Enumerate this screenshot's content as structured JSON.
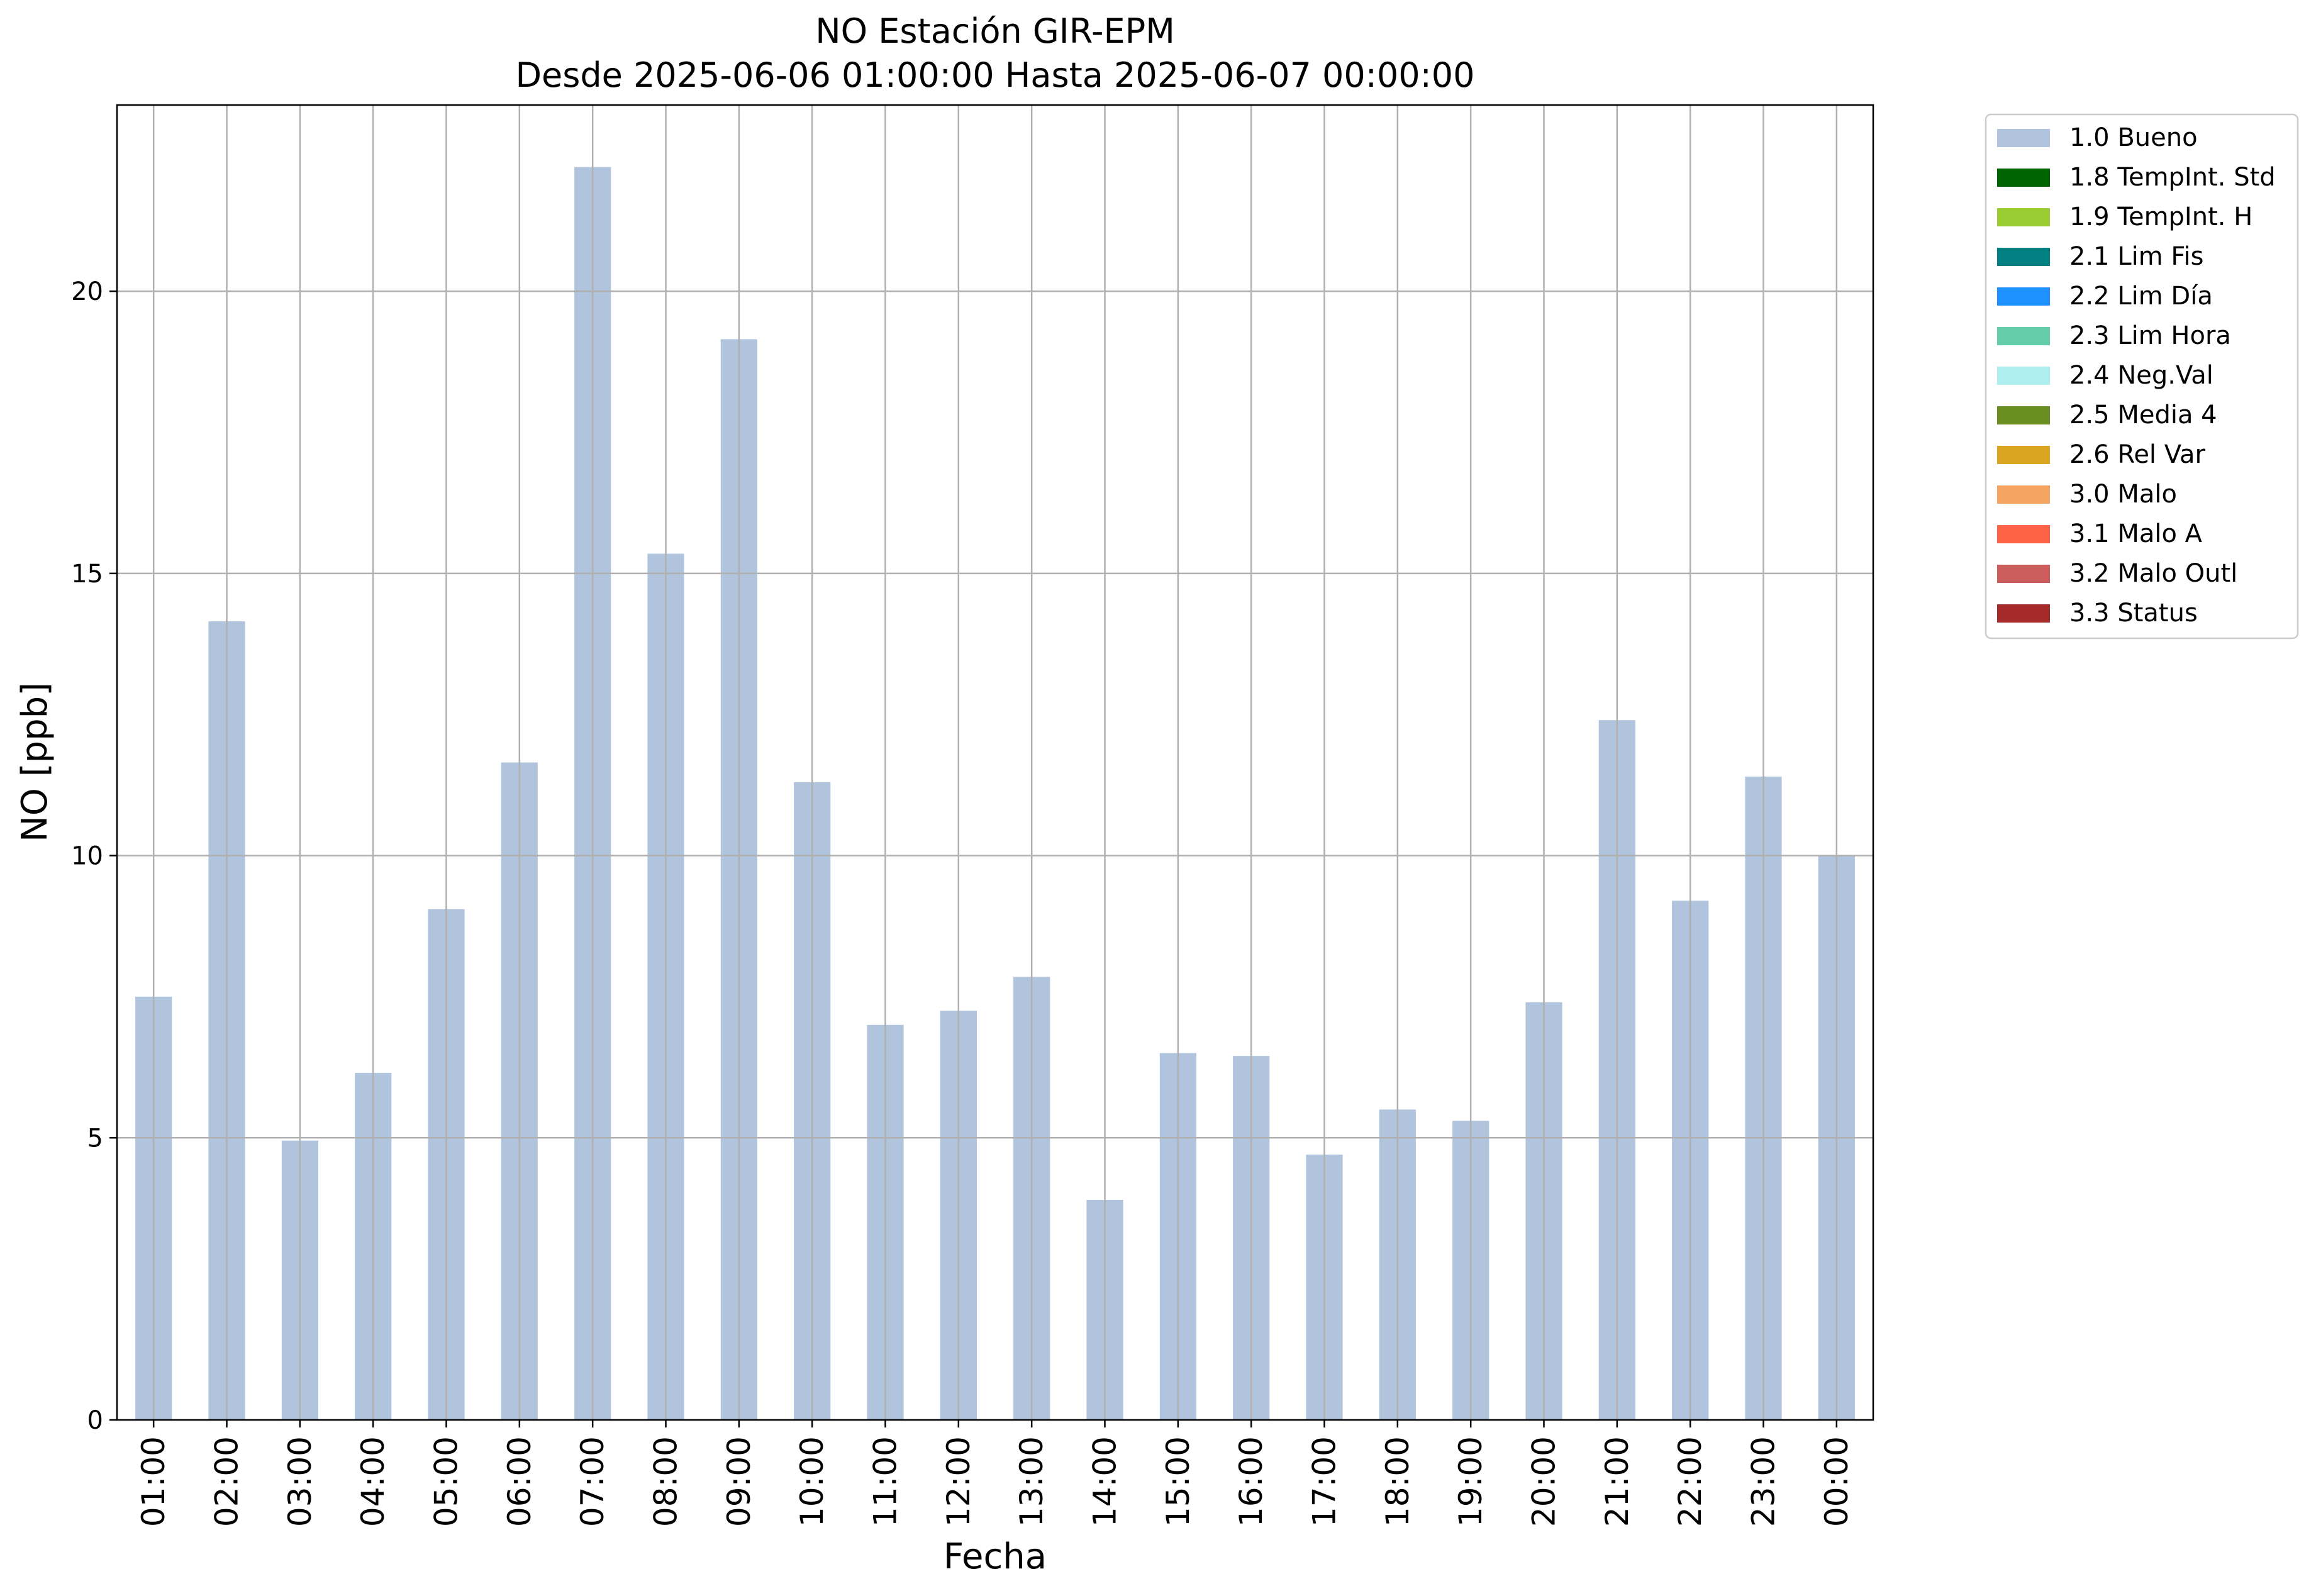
{
  "chart_data": {
    "type": "bar",
    "title_line1": "NO Estación GIR-EPM",
    "title_line2": "Desde 2025-06-06 01:00:00 Hasta 2025-06-07 00:00:00",
    "xlabel": "Fecha",
    "ylabel": "NO [ppb]",
    "ylim": [
      0,
      23.3
    ],
    "yticks": [
      0,
      5,
      10,
      15,
      20
    ],
    "grid": true,
    "legend_position": "outside-top-right",
    "categories": [
      "01:00",
      "02:00",
      "03:00",
      "04:00",
      "05:00",
      "06:00",
      "07:00",
      "08:00",
      "09:00",
      "10:00",
      "11:00",
      "12:00",
      "13:00",
      "14:00",
      "15:00",
      "16:00",
      "17:00",
      "18:00",
      "19:00",
      "20:00",
      "21:00",
      "22:00",
      "23:00",
      "00:00"
    ],
    "series": [
      {
        "name": "1.0 Bueno",
        "color": "#b0c4de",
        "values": [
          7.5,
          14.15,
          4.95,
          6.15,
          9.05,
          11.65,
          22.2,
          15.35,
          19.15,
          11.3,
          7.0,
          7.25,
          7.85,
          3.9,
          6.5,
          6.45,
          4.7,
          5.5,
          5.3,
          7.4,
          12.4,
          9.2,
          11.4,
          10.0
        ]
      }
    ],
    "legend": [
      {
        "label": "1.0 Bueno",
        "color": "#b0c4de"
      },
      {
        "label": "1.8 TempInt. Std",
        "color": "#006400"
      },
      {
        "label": "1.9 TempInt. H",
        "color": "#9acd32"
      },
      {
        "label": "2.1 Lim Fis",
        "color": "#008080"
      },
      {
        "label": "2.2 Lim Día",
        "color": "#1e90ff"
      },
      {
        "label": "2.3 Lim Hora",
        "color": "#66cdaa"
      },
      {
        "label": "2.4 Neg.Val",
        "color": "#afeeee"
      },
      {
        "label": "2.5 Media 4",
        "color": "#6b8e23"
      },
      {
        "label": "2.6 Rel Var",
        "color": "#daa520"
      },
      {
        "label": "3.0 Malo",
        "color": "#f4a460"
      },
      {
        "label": "3.1 Malo A",
        "color": "#ff6347"
      },
      {
        "label": "3.2 Malo Outl",
        "color": "#cd5c5c"
      },
      {
        "label": "3.3 Status",
        "color": "#a52a2a"
      }
    ]
  }
}
